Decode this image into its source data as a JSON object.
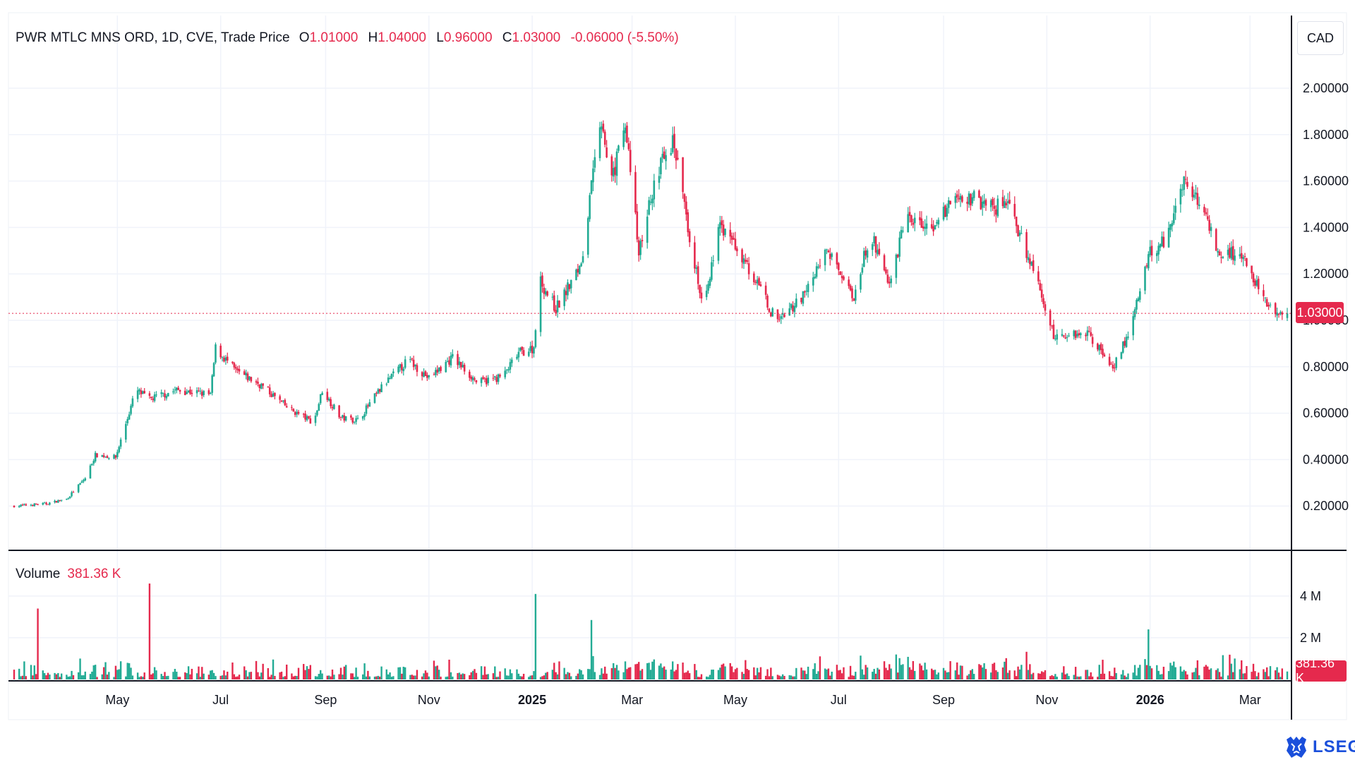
{
  "header": {
    "instrument": "PWR MTLC MNS ORD, 1D, CVE, Trade Price",
    "open_label": "O",
    "open": "1.01000",
    "high_label": "H",
    "high": "1.04000",
    "low_label": "L",
    "low": "0.96000",
    "close_label": "C",
    "close": "1.03000",
    "change": "-0.06000 (-5.50%)"
  },
  "volume_header": {
    "label": "Volume",
    "value": "381.36 K"
  },
  "currency_button": "CAD",
  "last_price_tag": "1.03000",
  "last_volume_tag": "381.36 K",
  "brand": "LSEG",
  "colors": {
    "up": "#22ab94",
    "down": "#e5294d",
    "grid": "#f0f3fa",
    "axis": "#131722",
    "brand": "#1a4fdb"
  },
  "chart_data": [
    {
      "type": "candlestick",
      "title": "PWR MTLC MNS ORD, 1D, CVE, Trade Price",
      "currency": "CAD",
      "y_axis_side": "right",
      "ylim": [
        0.0,
        2.08
      ],
      "y_ticks": [
        "0.20000",
        "0.40000",
        "0.60000",
        "0.80000",
        "1.00000",
        "1.20000",
        "1.40000",
        "1.60000",
        "1.80000",
        "2.00000"
      ],
      "x_tick_labels": [
        {
          "date": "2024-05-01",
          "label": "May",
          "bold": false
        },
        {
          "date": "2024-07-01",
          "label": "Jul",
          "bold": false
        },
        {
          "date": "2024-09-01",
          "label": "Sep",
          "bold": false
        },
        {
          "date": "2024-11-01",
          "label": "Nov",
          "bold": false
        },
        {
          "date": "2025-01-01",
          "label": "2025",
          "bold": true
        },
        {
          "date": "2025-03-01",
          "label": "Mar",
          "bold": false
        },
        {
          "date": "2025-05-01",
          "label": "May",
          "bold": false
        },
        {
          "date": "2025-07-01",
          "label": "Jul",
          "bold": false
        },
        {
          "date": "2025-09-01",
          "label": "Sep",
          "bold": false
        },
        {
          "date": "2025-11-01",
          "label": "Nov",
          "bold": false
        },
        {
          "date": "2026-01-01",
          "label": "2026",
          "bold": true
        },
        {
          "date": "2026-03-01",
          "label": "Mar",
          "bold": false
        }
      ],
      "date_range": [
        "2024-03-01",
        "2026-03-23"
      ],
      "approx_close_path": [
        [
          "2024-03-01",
          0.2
        ],
        [
          "2024-03-20",
          0.21
        ],
        [
          "2024-04-01",
          0.23
        ],
        [
          "2024-04-12",
          0.32
        ],
        [
          "2024-04-18",
          0.42
        ],
        [
          "2024-04-30",
          0.41
        ],
        [
          "2024-05-12",
          0.7
        ],
        [
          "2024-05-20",
          0.66
        ],
        [
          "2024-06-05",
          0.7
        ],
        [
          "2024-06-25",
          0.68
        ],
        [
          "2024-06-28",
          0.88
        ],
        [
          "2024-07-10",
          0.78
        ],
        [
          "2024-07-25",
          0.72
        ],
        [
          "2024-08-10",
          0.62
        ],
        [
          "2024-08-25",
          0.56
        ],
        [
          "2024-08-30",
          0.7
        ],
        [
          "2024-09-10",
          0.58
        ],
        [
          "2024-09-20",
          0.57
        ],
        [
          "2024-10-05",
          0.72
        ],
        [
          "2024-10-20",
          0.83
        ],
        [
          "2024-11-01",
          0.75
        ],
        [
          "2024-11-15",
          0.84
        ],
        [
          "2024-11-30",
          0.73
        ],
        [
          "2024-12-15",
          0.76
        ],
        [
          "2024-12-24",
          0.86
        ],
        [
          "2025-01-02",
          0.88
        ],
        [
          "2025-01-05",
          1.18
        ],
        [
          "2025-01-15",
          1.05
        ],
        [
          "2025-01-31",
          1.25
        ],
        [
          "2025-02-05",
          1.58
        ],
        [
          "2025-02-10",
          1.85
        ],
        [
          "2025-02-17",
          1.6
        ],
        [
          "2025-02-25",
          1.85
        ],
        [
          "2025-03-05",
          1.3
        ],
        [
          "2025-03-15",
          1.62
        ],
        [
          "2025-03-25",
          1.78
        ],
        [
          "2025-04-05",
          1.32
        ],
        [
          "2025-04-12",
          1.05
        ],
        [
          "2025-04-22",
          1.42
        ],
        [
          "2025-05-05",
          1.28
        ],
        [
          "2025-05-25",
          1.0
        ],
        [
          "2025-06-10",
          1.1
        ],
        [
          "2025-06-25",
          1.3
        ],
        [
          "2025-07-10",
          1.1
        ],
        [
          "2025-07-20",
          1.38
        ],
        [
          "2025-07-31",
          1.15
        ],
        [
          "2025-08-10",
          1.45
        ],
        [
          "2025-08-25",
          1.38
        ],
        [
          "2025-09-10",
          1.55
        ],
        [
          "2025-09-25",
          1.5
        ],
        [
          "2025-10-10",
          1.48
        ],
        [
          "2025-10-25",
          1.2
        ],
        [
          "2025-11-05",
          0.93
        ],
        [
          "2025-11-25",
          0.95
        ],
        [
          "2025-12-10",
          0.8
        ],
        [
          "2025-12-20",
          0.95
        ],
        [
          "2025-12-31",
          1.28
        ],
        [
          "2026-01-10",
          1.35
        ],
        [
          "2026-01-20",
          1.6
        ],
        [
          "2026-01-31",
          1.5
        ],
        [
          "2026-02-10",
          1.3
        ],
        [
          "2026-02-25",
          1.28
        ],
        [
          "2026-03-05",
          1.15
        ],
        [
          "2026-03-12",
          1.05
        ],
        [
          "2026-03-23",
          1.03
        ]
      ],
      "last": {
        "date": "2026-03-23",
        "open": 1.01,
        "high": 1.04,
        "low": 0.96,
        "close": 1.03,
        "change": -0.06,
        "change_pct": -5.5
      }
    },
    {
      "type": "bar",
      "series": [
        {
          "name": "Volume"
        }
      ],
      "y_ticks": [
        "2 M",
        "4 M"
      ],
      "ylim": [
        0,
        4500000
      ],
      "last_value": 381360,
      "notable_spikes": [
        {
          "date": "2024-03-15",
          "value": 3400000
        },
        {
          "date": "2024-05-20",
          "value": 4600000
        },
        {
          "date": "2025-01-03",
          "value": 4100000
        },
        {
          "date": "2025-02-05",
          "value": 2850000
        },
        {
          "date": "2025-12-31",
          "value": 2400000
        }
      ]
    }
  ]
}
